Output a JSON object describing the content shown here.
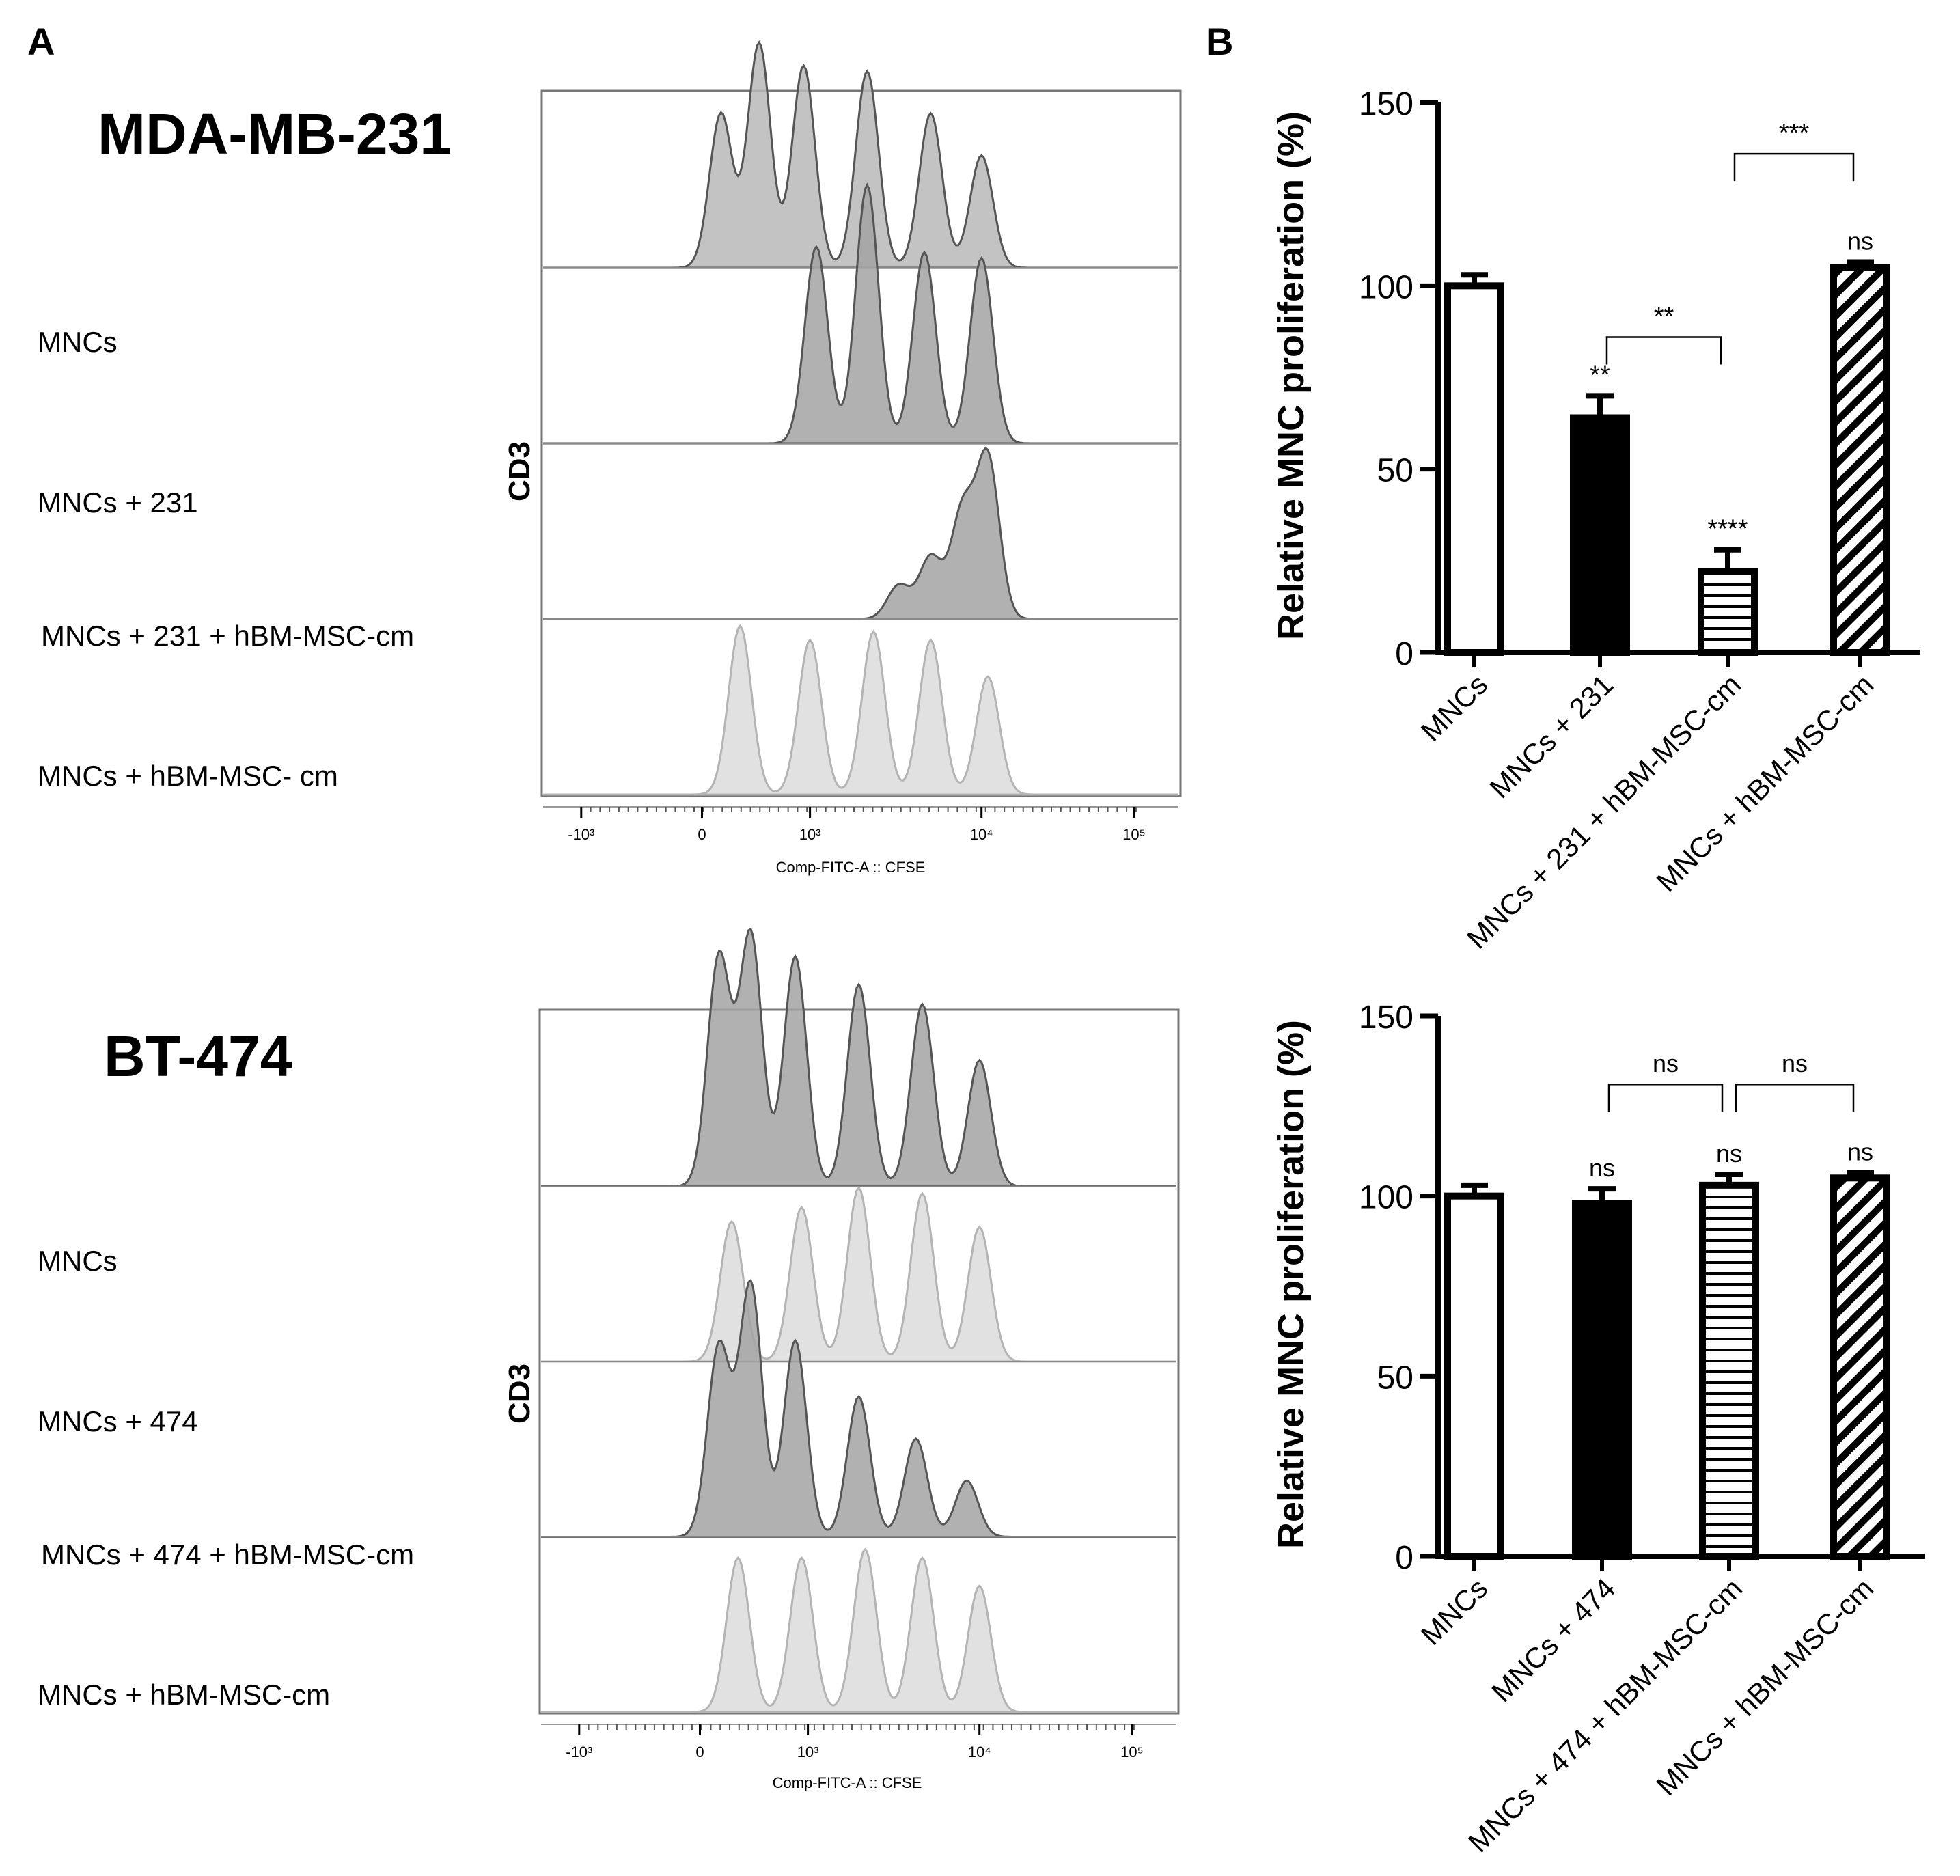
{
  "panel_labels": {
    "a": "A",
    "b": "B"
  },
  "colors": {
    "light": "#dcdcdc",
    "medium": "#b8b8b8",
    "dark": "#a3a3a3",
    "line_light": "#b4b4b4",
    "line_dark": "#555555",
    "axis": "#000000"
  },
  "chart_data": [
    {
      "type": "histogram_overlay",
      "panel": "A",
      "cell_line": "MDA-MB-231",
      "ylabel": "CD3",
      "xlabel": "Comp-FITC-A :: CFSE",
      "xticks": [
        "-10³",
        "0",
        "10³",
        "10⁴",
        "10⁵"
      ],
      "rows": [
        {
          "label": "MNCs",
          "shade": "medium",
          "peaks": [
            [
              0.28,
              0.55
            ],
            [
              0.34,
              0.8
            ],
            [
              0.41,
              0.72
            ],
            [
              0.51,
              0.7
            ],
            [
              0.61,
              0.55
            ],
            [
              0.69,
              0.4
            ]
          ]
        },
        {
          "label": "MNCs + 231",
          "shade": "dark",
          "peaks": [
            [
              0.43,
              0.7
            ],
            [
              0.51,
              0.92
            ],
            [
              0.6,
              0.68
            ],
            [
              0.69,
              0.66
            ]
          ]
        },
        {
          "label": "MNCs + 231 + hBM-MSC-cm",
          "shade": "dark",
          "peaks": [
            [
              0.56,
              0.12
            ],
            [
              0.61,
              0.22
            ],
            [
              0.66,
              0.38
            ],
            [
              0.7,
              0.57
            ]
          ]
        },
        {
          "label": "MNCs +  hBM-MSC- cm",
          "shade": "light",
          "peaks": [
            [
              0.31,
              0.6
            ],
            [
              0.42,
              0.55
            ],
            [
              0.52,
              0.58
            ],
            [
              0.61,
              0.55
            ],
            [
              0.7,
              0.42
            ]
          ]
        }
      ]
    },
    {
      "type": "histogram_overlay",
      "panel": "A",
      "cell_line": "BT-474",
      "ylabel": "CD3",
      "xlabel": "Comp-FITC-A :: CFSE",
      "xticks": [
        "-10³",
        "0",
        "10³",
        "10⁴",
        "10⁵"
      ],
      "rows": [
        {
          "label": "MNCs",
          "shade": "dark",
          "peaks": [
            [
              0.28,
              0.82
            ],
            [
              0.33,
              0.9
            ],
            [
              0.4,
              0.82
            ],
            [
              0.5,
              0.72
            ],
            [
              0.6,
              0.65
            ],
            [
              0.69,
              0.45
            ]
          ]
        },
        {
          "label": "MNCs + 474",
          "shade": "light",
          "peaks": [
            [
              0.3,
              0.5
            ],
            [
              0.41,
              0.55
            ],
            [
              0.5,
              0.62
            ],
            [
              0.6,
              0.6
            ],
            [
              0.69,
              0.48
            ]
          ]
        },
        {
          "label": "MNCs + 474 + hBM-MSC-cm",
          "shade": "dark",
          "peaks": [
            [
              0.28,
              0.68
            ],
            [
              0.33,
              0.9
            ],
            [
              0.4,
              0.7
            ],
            [
              0.5,
              0.5
            ],
            [
              0.59,
              0.35
            ],
            [
              0.67,
              0.2
            ]
          ]
        },
        {
          "label": "MNCs + hBM-MSC-cm",
          "shade": "light",
          "peaks": [
            [
              0.31,
              0.55
            ],
            [
              0.41,
              0.55
            ],
            [
              0.51,
              0.58
            ],
            [
              0.6,
              0.55
            ],
            [
              0.69,
              0.45
            ]
          ]
        }
      ]
    },
    {
      "type": "bar",
      "panel": "B",
      "title": "",
      "ylabel": "Relative MNC proliferation (%)",
      "ylim": [
        0,
        150
      ],
      "yticks": [
        0,
        50,
        100,
        150
      ],
      "categories": [
        "MNCs",
        "MNCs + 231",
        "MNCs + 231 + hBM-MSC-cm",
        "MNCs + hBM-MSC-cm"
      ],
      "values": [
        100,
        64,
        22,
        105
      ],
      "errors": [
        3,
        6,
        6,
        1.5
      ],
      "patterns": [
        "open",
        "solid",
        "horizontal",
        "diagonal"
      ],
      "bar_annotations": [
        "",
        "**",
        "****",
        "ns"
      ],
      "comparisons": [
        {
          "from": 1,
          "to": 2,
          "label": "**",
          "y": 86
        },
        {
          "from": 2,
          "to": 3,
          "label": "***",
          "y": 136
        }
      ]
    },
    {
      "type": "bar",
      "panel": "B",
      "title": "",
      "ylabel": "Relative  MNC proliferation (%)",
      "ylim": [
        0,
        150
      ],
      "yticks": [
        0,
        50,
        100,
        150
      ],
      "categories": [
        "MNCs",
        "MNCs + 474",
        "MNCs + 474 + hBM-MSC-cm",
        "MNCs + hBM-MSC-cm"
      ],
      "values": [
        100,
        98,
        103,
        105
      ],
      "errors": [
        3,
        4,
        3,
        1.5
      ],
      "patterns": [
        "open",
        "solid",
        "horizontal",
        "diagonal"
      ],
      "bar_annotations": [
        "",
        "ns",
        "ns",
        "ns"
      ],
      "comparisons": [
        {
          "from": 1,
          "to": 2,
          "label": "ns",
          "y": 131
        },
        {
          "from": 2,
          "to": 3,
          "label": "ns",
          "y": 131
        }
      ]
    }
  ]
}
